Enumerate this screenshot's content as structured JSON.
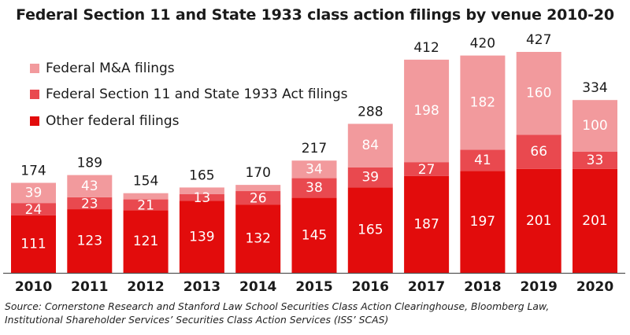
{
  "chart_data": {
    "type": "bar",
    "stacked": true,
    "title": "Federal Section 11 and State 1933 class action filings by venue 2010-20",
    "xlabel": "",
    "ylabel": "",
    "categories": [
      "2010",
      "2011",
      "2012",
      "2013",
      "2014",
      "2015",
      "2016",
      "2017",
      "2018",
      "2019",
      "2020"
    ],
    "series": [
      {
        "name": "Other federal filings",
        "color": "#e20c0c",
        "values": [
          111,
          123,
          121,
          139,
          132,
          145,
          165,
          187,
          197,
          201,
          201
        ]
      },
      {
        "name": "Federal Section 11 and State 1933 Act filings",
        "color": "#e9494f",
        "values": [
          24,
          23,
          21,
          13,
          26,
          38,
          39,
          27,
          41,
          66,
          33
        ]
      },
      {
        "name": "Federal M&A filings",
        "color": "#f29a9d",
        "values": [
          39,
          43,
          12,
          13,
          12,
          34,
          84,
          198,
          182,
          160,
          100
        ]
      }
    ],
    "totals": [
      174,
      189,
      154,
      165,
      170,
      217,
      288,
      412,
      420,
      427,
      334
    ],
    "hidden_labels": [
      [],
      [],
      [
        "2:12"
      ],
      [
        "2:13"
      ],
      [
        "2:12"
      ],
      [],
      [],
      [],
      [],
      [],
      []
    ],
    "legend_order": [
      "Federal M&A filings",
      "Federal Section 11 and State 1933 Act filings",
      "Other federal filings"
    ],
    "legend_position": "top-left",
    "ylim": [
      0,
      440
    ],
    "grid": false
  },
  "source_lines": [
    "Source: Cornerstone Research and Stanford Law School Securities Class Action Clearinghouse, Bloomberg Law,",
    "Institutional Shareholder Services’ Securities Class Action Services (ISS’ SCAS)"
  ]
}
